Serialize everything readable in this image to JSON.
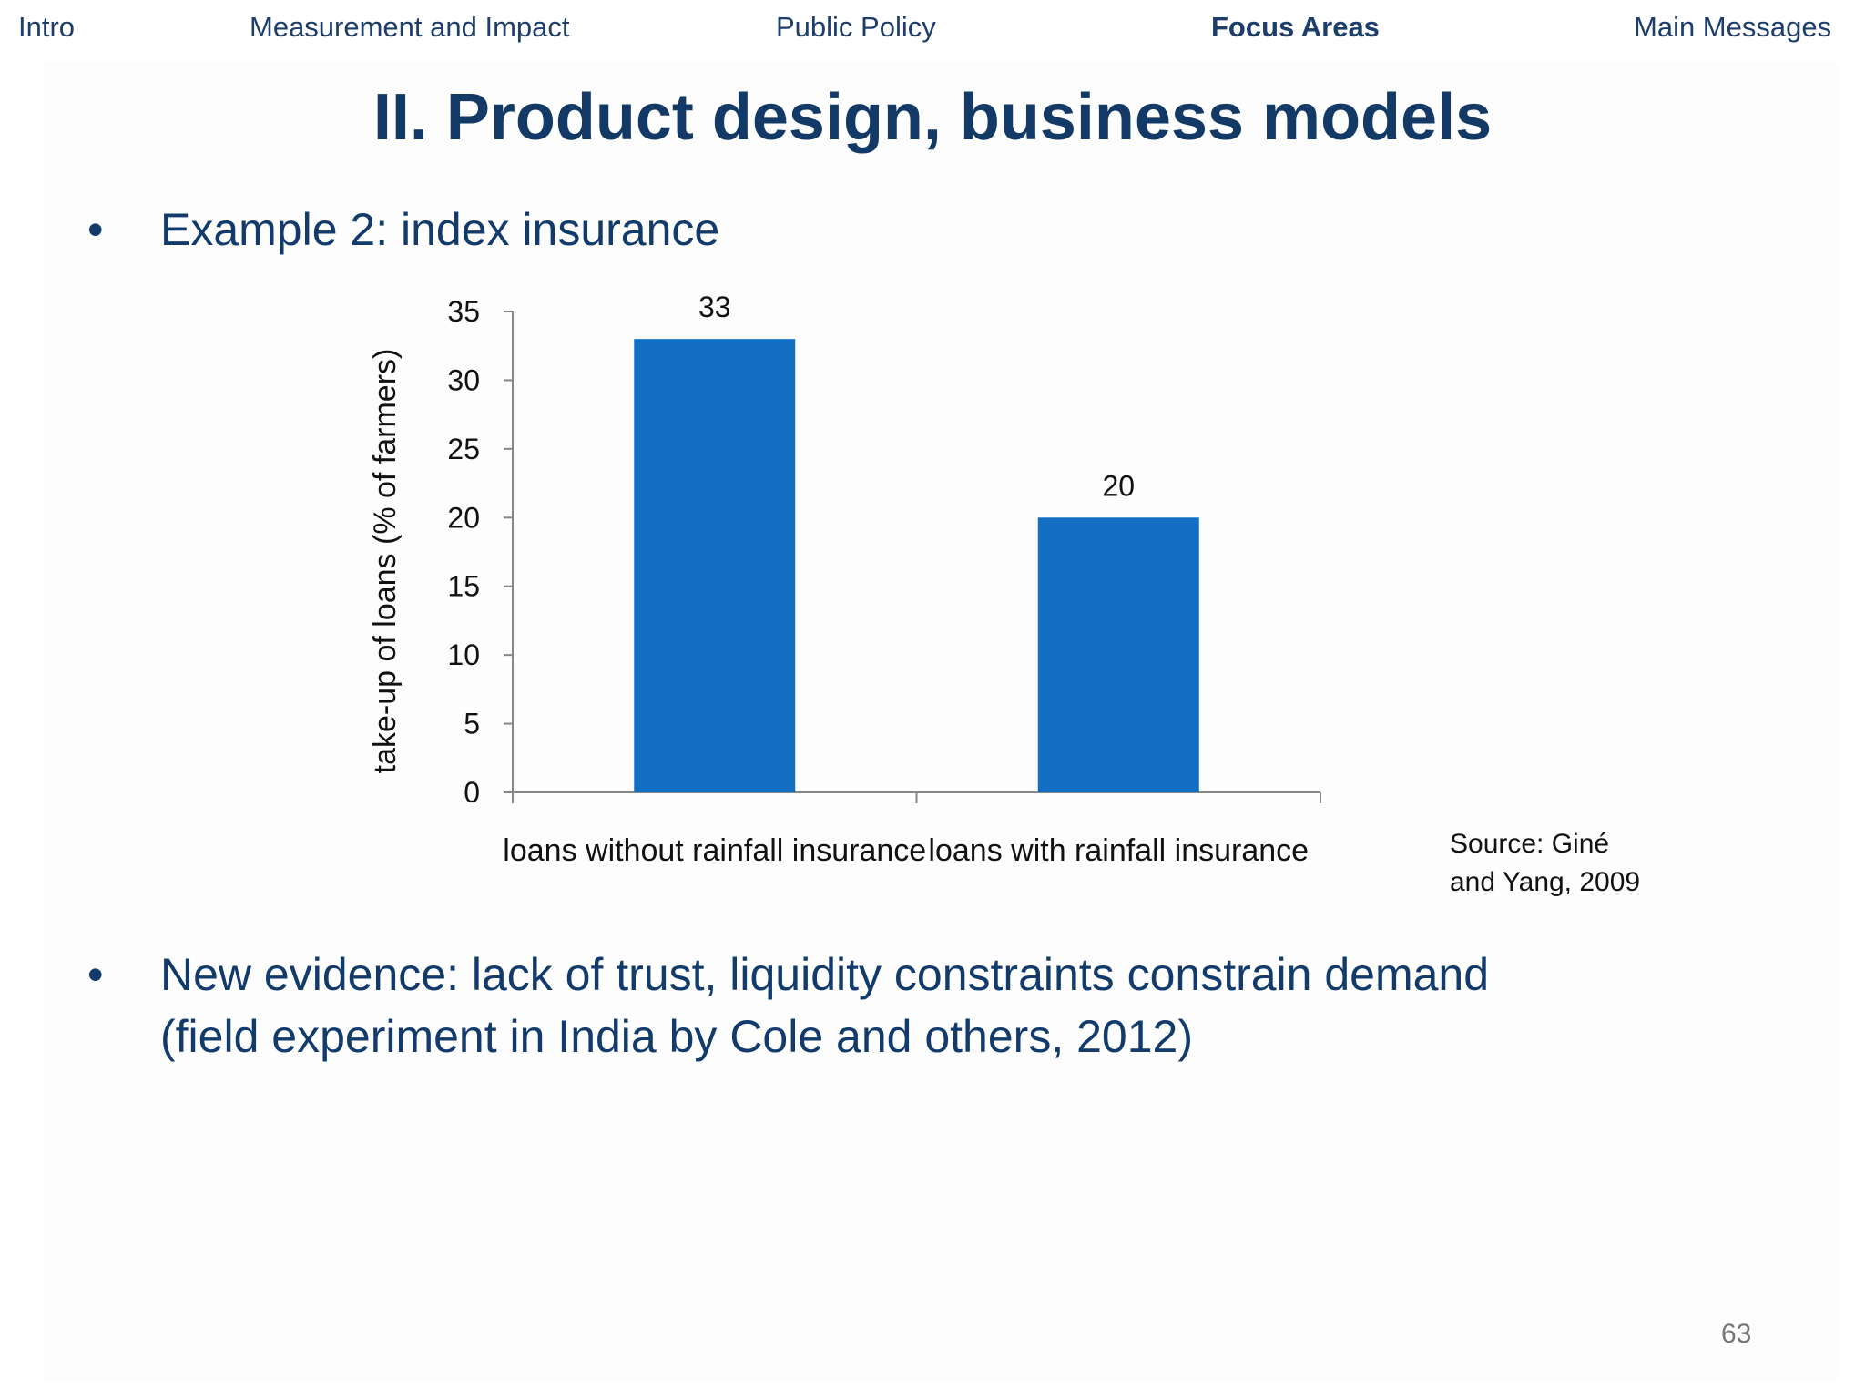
{
  "nav": {
    "items": [
      {
        "label": "Intro",
        "active": false
      },
      {
        "label": "Measurement and Impact",
        "active": false
      },
      {
        "label": "Public Policy",
        "active": false
      },
      {
        "label": "Focus Areas",
        "active": true
      },
      {
        "label": "Main Messages",
        "active": false
      }
    ]
  },
  "slide": {
    "title": "II. Product design, business models",
    "bullets": [
      {
        "marker": "•",
        "text": "Example 2: index insurance"
      },
      {
        "marker": "•",
        "text_line1": "New evidence: lack of trust, liquidity constraints constrain demand",
        "text_line2": "(field experiment in India by Cole and others, 2012)"
      }
    ],
    "source_line1": "Source: Giné",
    "source_line2": "and Yang, 2009",
    "page_number": "63"
  },
  "colors": {
    "bar": "#136fc4",
    "text": "#123b6b"
  },
  "chart_data": {
    "type": "bar",
    "categories": [
      "loans without rainfall insurance",
      "loans with rainfall insurance"
    ],
    "values": [
      33,
      20
    ],
    "value_labels": [
      "33",
      "20"
    ],
    "title": "",
    "xlabel": "",
    "ylabel": "take-up of loans (%  of farmers)",
    "ylim": [
      0,
      35
    ],
    "yticks": [
      0,
      5,
      10,
      15,
      20,
      25,
      30,
      35
    ],
    "grid": false,
    "legend": "none"
  }
}
